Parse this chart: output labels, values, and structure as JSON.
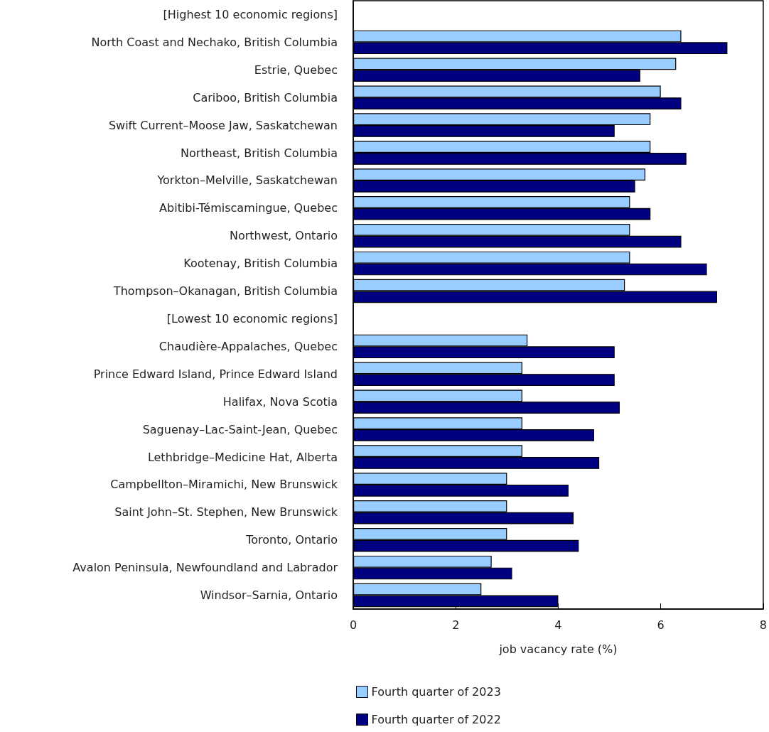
{
  "chart_data": {
    "type": "bar",
    "orientation": "horizontal",
    "xlabel": "job vacancy rate (%)",
    "categories": [
      "[Highest 10 economic regions]",
      "North Coast and Nechako, British Columbia",
      "Estrie, Quebec",
      "Cariboo, British Columbia",
      "Swift Current–Moose Jaw, Saskatchewan",
      "Northeast, British Columbia",
      "Yorkton–Melville, Saskatchewan",
      "Abitibi-Témiscamingue, Quebec",
      "Northwest, Ontario",
      "Kootenay, British Columbia",
      "Thompson–Okanagan, British Columbia",
      "[Lowest 10 economic regions]",
      "Chaudière-Appalaches, Quebec",
      "Prince Edward Island, Prince Edward Island",
      "Halifax, Nova Scotia",
      "Saguenay–Lac-Saint-Jean, Quebec",
      "Lethbridge–Medicine Hat, Alberta",
      "Campbellton–Miramichi, New Brunswick",
      "Saint John–St. Stephen, New Brunswick",
      "Toronto, Ontario",
      "Avalon Peninsula, Newfoundland and Labrador",
      "Windsor–Sarnia, Ontario"
    ],
    "series": [
      {
        "name": "Fourth quarter of 2023",
        "color": "#99ccff",
        "values": [
          null,
          6.4,
          6.3,
          6.0,
          5.8,
          5.8,
          5.7,
          5.4,
          5.4,
          5.4,
          5.3,
          null,
          3.4,
          3.3,
          3.3,
          3.3,
          3.3,
          3.0,
          3.0,
          3.0,
          2.7,
          2.5
        ]
      },
      {
        "name": "Fourth quarter of 2022",
        "color": "#000080",
        "values": [
          null,
          7.3,
          5.6,
          6.4,
          5.1,
          6.5,
          5.5,
          5.8,
          6.4,
          6.9,
          7.1,
          null,
          5.1,
          5.1,
          5.2,
          4.7,
          4.8,
          4.2,
          4.3,
          4.4,
          3.1,
          4.0
        ]
      }
    ],
    "xlim": [
      0,
      8
    ],
    "xticks": [
      0,
      2,
      4,
      6,
      8
    ],
    "grid": false,
    "legend": "bottom"
  }
}
